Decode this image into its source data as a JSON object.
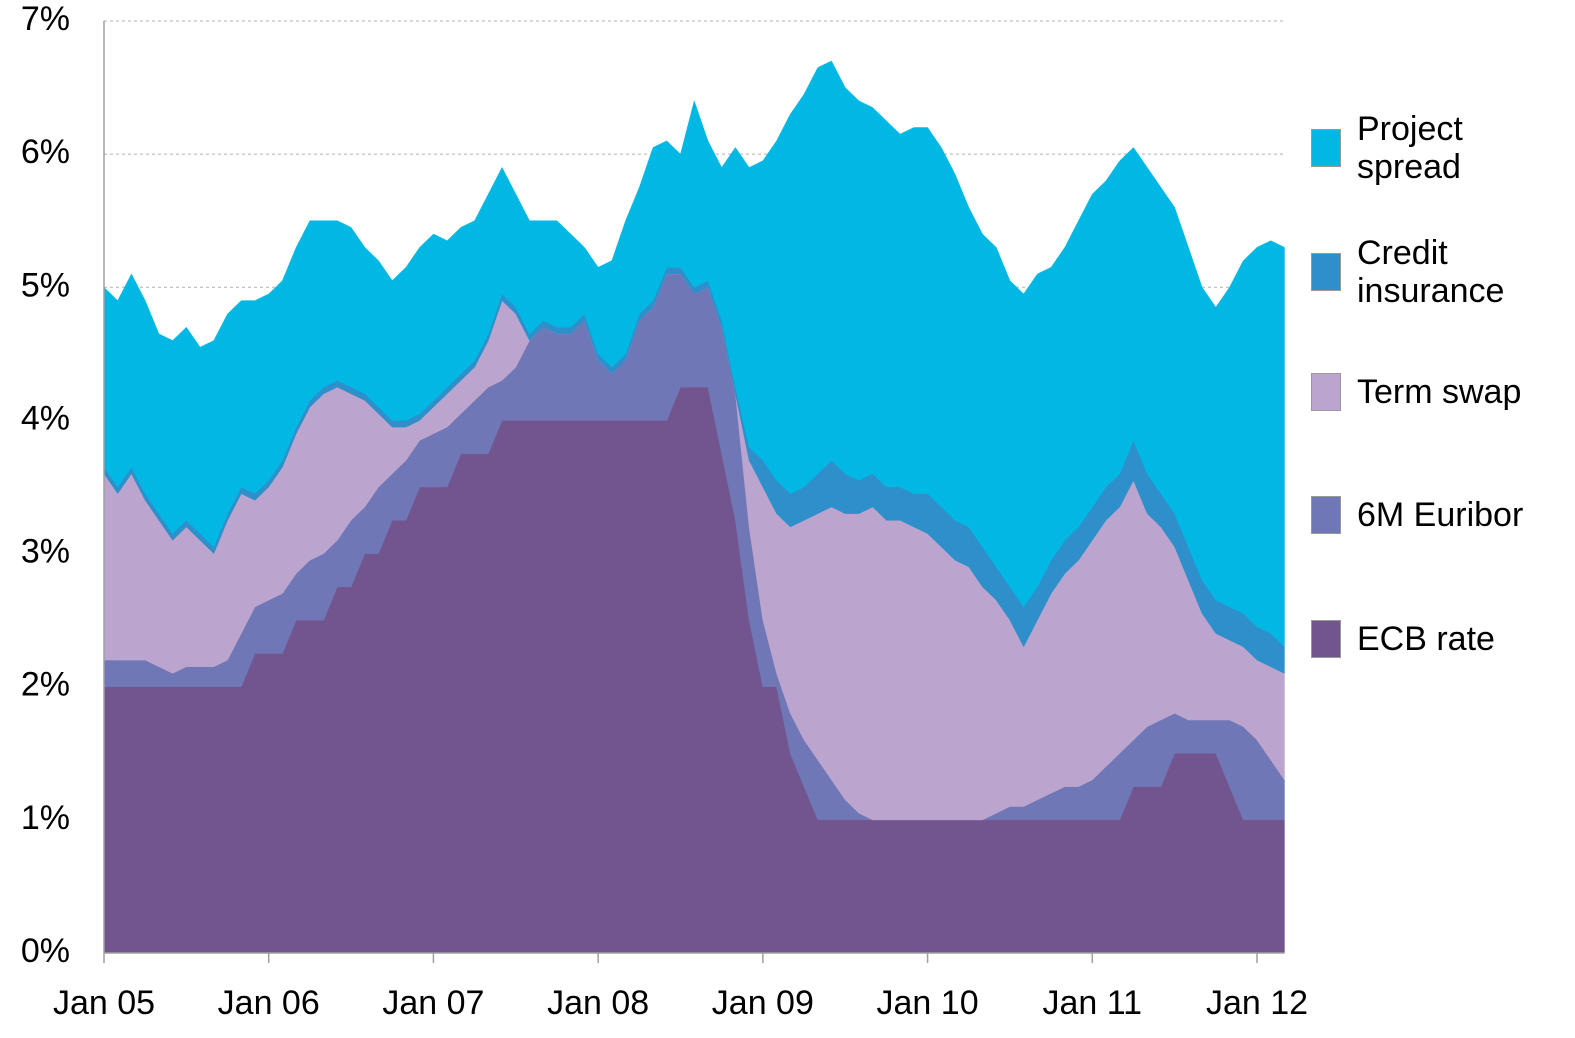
{
  "chart_data": {
    "type": "stacked_area",
    "categories": [
      "Jan 05",
      null,
      null,
      null,
      null,
      null,
      null,
      null,
      null,
      null,
      null,
      null,
      "Jan 06",
      null,
      null,
      null,
      null,
      null,
      null,
      null,
      null,
      null,
      null,
      null,
      "Jan 07",
      null,
      null,
      null,
      null,
      null,
      null,
      null,
      null,
      null,
      null,
      null,
      "Jan 08",
      null,
      null,
      null,
      null,
      null,
      null,
      null,
      null,
      null,
      null,
      null,
      "Jan 09",
      null,
      null,
      null,
      null,
      null,
      null,
      null,
      null,
      null,
      null,
      null,
      "Jan 10",
      null,
      null,
      null,
      null,
      null,
      null,
      null,
      null,
      null,
      null,
      null,
      "Jan 11",
      null,
      null,
      null,
      null,
      null,
      null,
      null,
      null,
      null,
      null,
      null,
      "Jan 12",
      null,
      null
    ],
    "series": [
      {
        "name": "ECB rate",
        "color": "#72558f",
        "values": [
          2.0,
          2.0,
          2.0,
          2.0,
          2.0,
          2.0,
          2.0,
          2.0,
          2.0,
          2.0,
          2.0,
          2.25,
          2.25,
          2.25,
          2.5,
          2.5,
          2.5,
          2.75,
          2.75,
          3.0,
          3.0,
          3.25,
          3.25,
          3.5,
          3.5,
          3.5,
          3.75,
          3.75,
          3.75,
          4.0,
          4.0,
          4.0,
          4.0,
          4.0,
          4.0,
          4.0,
          4.0,
          4.0,
          4.0,
          4.0,
          4.0,
          4.0,
          4.25,
          4.25,
          4.25,
          3.75,
          3.25,
          2.5,
          2.0,
          2.0,
          1.5,
          1.25,
          1.0,
          1.0,
          1.0,
          1.0,
          1.0,
          1.0,
          1.0,
          1.0,
          1.0,
          1.0,
          1.0,
          1.0,
          1.0,
          1.0,
          1.0,
          1.0,
          1.0,
          1.0,
          1.0,
          1.0,
          1.0,
          1.0,
          1.0,
          1.25,
          1.25,
          1.25,
          1.5,
          1.5,
          1.5,
          1.5,
          1.25,
          1.0,
          1.0,
          1.0,
          1.0
        ]
      },
      {
        "name": "6M Euribor",
        "color": "#6f77b6",
        "values": [
          0.2,
          0.2,
          0.2,
          0.2,
          0.15,
          0.1,
          0.15,
          0.15,
          0.15,
          0.2,
          0.4,
          0.35,
          0.4,
          0.45,
          0.35,
          0.45,
          0.5,
          0.35,
          0.5,
          0.35,
          0.5,
          0.35,
          0.45,
          0.35,
          0.4,
          0.45,
          0.3,
          0.4,
          0.5,
          0.3,
          0.4,
          0.6,
          0.7,
          0.65,
          0.65,
          0.75,
          0.45,
          0.35,
          0.45,
          0.75,
          0.85,
          1.1,
          0.85,
          0.7,
          0.75,
          0.95,
          0.95,
          0.7,
          0.5,
          0.1,
          0.3,
          0.35,
          0.45,
          0.3,
          0.15,
          0.05,
          0,
          0,
          0,
          0,
          0,
          0,
          0,
          0,
          0,
          0.05,
          0.1,
          0.1,
          0.15,
          0.2,
          0.25,
          0.25,
          0.3,
          0.4,
          0.5,
          0.35,
          0.45,
          0.5,
          0.3,
          0.25,
          0.25,
          0.25,
          0.5,
          0.7,
          0.6,
          0.45,
          0.3
        ]
      },
      {
        "name": "Term swap",
        "color": "#bba4cd",
        "values": [
          1.4,
          1.25,
          1.4,
          1.2,
          1.1,
          1.0,
          1.05,
          0.95,
          0.85,
          1.05,
          1.05,
          0.8,
          0.85,
          0.95,
          1.05,
          1.15,
          1.2,
          1.15,
          0.95,
          0.8,
          0.55,
          0.35,
          0.25,
          0.15,
          0.2,
          0.25,
          0.25,
          0.25,
          0.35,
          0.6,
          0.4,
          0,
          0,
          0,
          0,
          0,
          0,
          0,
          0,
          0,
          0,
          0,
          0,
          0,
          0,
          0,
          0,
          0.5,
          1.0,
          1.2,
          1.4,
          1.65,
          1.85,
          2.05,
          2.15,
          2.25,
          2.35,
          2.25,
          2.25,
          2.2,
          2.15,
          2.05,
          1.95,
          1.9,
          1.75,
          1.6,
          1.4,
          1.2,
          1.35,
          1.5,
          1.6,
          1.7,
          1.8,
          1.85,
          1.85,
          1.95,
          1.6,
          1.45,
          1.25,
          1.05,
          0.8,
          0.65,
          0.6,
          0.6,
          0.6,
          0.7,
          0.8
        ]
      },
      {
        "name": "Credit insurance",
        "color": "#2e8fcb",
        "values": [
          0.05,
          0.05,
          0.05,
          0.05,
          0.05,
          0.05,
          0.05,
          0.05,
          0.05,
          0.05,
          0.05,
          0.05,
          0.05,
          0.05,
          0.05,
          0.05,
          0.05,
          0.05,
          0.05,
          0.05,
          0.05,
          0.05,
          0.05,
          0.05,
          0.05,
          0.05,
          0.05,
          0.05,
          0.05,
          0.05,
          0.05,
          0.05,
          0.05,
          0.05,
          0.05,
          0.05,
          0.05,
          0.05,
          0.05,
          0.05,
          0.05,
          0.05,
          0.05,
          0.05,
          0.05,
          0.05,
          0.05,
          0.1,
          0.2,
          0.25,
          0.25,
          0.25,
          0.3,
          0.35,
          0.3,
          0.25,
          0.25,
          0.25,
          0.25,
          0.25,
          0.3,
          0.3,
          0.3,
          0.3,
          0.3,
          0.25,
          0.25,
          0.3,
          0.25,
          0.25,
          0.25,
          0.25,
          0.25,
          0.25,
          0.25,
          0.3,
          0.3,
          0.25,
          0.25,
          0.25,
          0.25,
          0.25,
          0.25,
          0.25,
          0.25,
          0.25,
          0.2
        ]
      },
      {
        "name": "Project spread",
        "color": "#00b8e3",
        "values": [
          1.35,
          1.4,
          1.45,
          1.45,
          1.35,
          1.45,
          1.45,
          1.4,
          1.55,
          1.5,
          1.4,
          1.45,
          1.4,
          1.35,
          1.35,
          1.35,
          1.25,
          1.2,
          1.2,
          1.1,
          1.1,
          1.05,
          1.15,
          1.25,
          1.25,
          1.1,
          1.1,
          1.05,
          1.05,
          0.95,
          0.85,
          0.85,
          0.75,
          0.8,
          0.7,
          0.5,
          0.65,
          0.8,
          1.0,
          0.95,
          1.15,
          0.95,
          0.85,
          1.4,
          1.05,
          1.15,
          1.8,
          2.1,
          2.25,
          2.55,
          2.85,
          2.95,
          3.05,
          3.0,
          2.9,
          2.85,
          2.75,
          2.75,
          2.65,
          2.75,
          2.75,
          2.7,
          2.6,
          2.4,
          2.35,
          2.4,
          2.3,
          2.35,
          2.35,
          2.2,
          2.2,
          2.3,
          2.35,
          2.3,
          2.35,
          2.2,
          2.3,
          2.3,
          2.3,
          2.25,
          2.2,
          2.2,
          2.4,
          2.65,
          2.85,
          2.95,
          3.0
        ]
      }
    ],
    "ylim": [
      0,
      7
    ],
    "yticks": [
      {
        "value": 0,
        "label": "0%"
      },
      {
        "value": 1,
        "label": "1%"
      },
      {
        "value": 2,
        "label": "2%"
      },
      {
        "value": 3,
        "label": "3%"
      },
      {
        "value": 4,
        "label": "4%"
      },
      {
        "value": 5,
        "label": "5%"
      },
      {
        "value": 6,
        "label": "6%"
      },
      {
        "value": 7,
        "label": "7%"
      }
    ],
    "grid": true,
    "legend": "right"
  }
}
